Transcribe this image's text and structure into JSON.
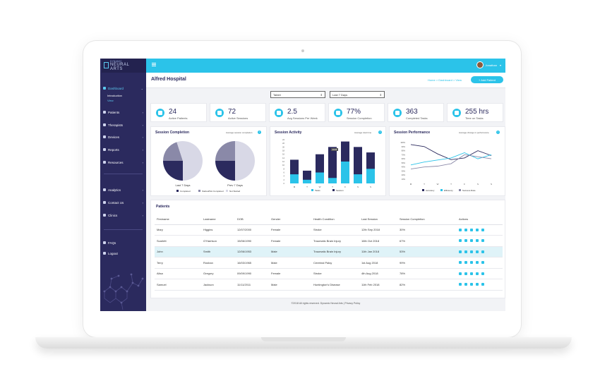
{
  "brand": {
    "line1": "DYNAMIC",
    "line2": "NEURAL",
    "line3": "ARTS"
  },
  "sidebar": {
    "items": [
      {
        "label": "Dashboard",
        "icon": "dashboard-icon",
        "active": true
      },
      {
        "label": "Patients",
        "icon": "user-icon"
      },
      {
        "label": "Therapists",
        "icon": "user-icon"
      },
      {
        "label": "Devices",
        "icon": "device-icon"
      },
      {
        "label": "Reports",
        "icon": "report-icon"
      },
      {
        "label": "Resources",
        "icon": "info-icon"
      },
      {
        "label": "Analytics",
        "icon": "chart-icon"
      },
      {
        "label": "Contact Us",
        "icon": "mail-icon"
      },
      {
        "label": "Clinics",
        "icon": "clinic-icon"
      },
      {
        "label": "FAQs",
        "icon": "help-icon"
      },
      {
        "label": "Logout",
        "icon": "power-icon"
      }
    ],
    "sub": [
      "Introduction",
      "View"
    ]
  },
  "topbar": {
    "user": "Jonathan"
  },
  "header": {
    "title": "Alfred Hospital",
    "crumbs": "Home  >  Dashboard  >  View",
    "add_label": "+ Add Patient"
  },
  "filters": {
    "device": "Tablet",
    "range": "Last 7 Days"
  },
  "stats": [
    {
      "value": "24",
      "label": "Active Patients"
    },
    {
      "value": "72",
      "label": "Active Sessions"
    },
    {
      "value": "2.5",
      "label": "Avg Sessions Per Week"
    },
    {
      "value": "77%",
      "label": "Session Completion"
    },
    {
      "value": "363",
      "label": "Completed Tasks"
    },
    {
      "value": "255 hrs",
      "label": "Time on Tasks"
    }
  ],
  "cards": {
    "completion": {
      "title": "Session Completion",
      "subtitle": "Average session completion",
      "pie1": "Last 7 Days",
      "pie2": "Prev 7 Days",
      "legend": [
        "Completed",
        "Started/Not Completed",
        "Not Started"
      ]
    },
    "activity": {
      "title": "Session Activity",
      "subtitle": "Average total time",
      "legend": [
        "Tasks",
        "Session"
      ],
      "tag": "00:05"
    },
    "performance": {
      "title": "Session Performance",
      "subtitle": "Average change in performance",
      "legend": [
        "Accuracy",
        "Efficiency",
        "Success Rate"
      ]
    }
  },
  "colors": {
    "accent": "#2bc3e9",
    "navy": "#2b2a5e",
    "grey": "#8a89a8",
    "light": "#d8d8e6"
  },
  "chart_data": [
    {
      "type": "pie",
      "title": "Last 7 Days",
      "categories": [
        "Completed",
        "Started/Not Completed",
        "Not Started"
      ],
      "values": [
        25,
        20,
        55
      ]
    },
    {
      "type": "pie",
      "title": "Prev 7 Days",
      "categories": [
        "Completed",
        "Started/Not Completed",
        "Not Started"
      ],
      "values": [
        25,
        25,
        50
      ]
    },
    {
      "type": "bar",
      "categories": [
        "M",
        "T",
        "W",
        "T",
        "F",
        "S",
        "S"
      ],
      "series": [
        {
          "name": "Tasks",
          "values": [
            5,
            2,
            6,
            3,
            12,
            5,
            8
          ]
        },
        {
          "name": "Session",
          "values": [
            13,
            7,
            16,
            20,
            23,
            20,
            17
          ]
        }
      ],
      "ylim": [
        0,
        24
      ]
    },
    {
      "type": "line",
      "categories": [
        "M",
        "T",
        "W",
        "T",
        "F",
        "S",
        "S"
      ],
      "series": [
        {
          "name": "Accuracy",
          "values": [
            95,
            90,
            72,
            58,
            62,
            80,
            68
          ]
        },
        {
          "name": "Efficiency",
          "values": [
            45,
            52,
            57,
            62,
            75,
            60,
            70
          ]
        },
        {
          "name": "Success Rate",
          "values": [
            35,
            40,
            42,
            48,
            70,
            65,
            60
          ]
        }
      ],
      "yticks": [
        "100%",
        "90%",
        "80%",
        "70%",
        "60%",
        "50%",
        "40%",
        "30%",
        "20%",
        "10%"
      ]
    }
  ],
  "patients": {
    "title": "Patients",
    "headers": [
      "Firstname",
      "Lastname",
      "DOB",
      "Gender",
      "Health Condition",
      "Last Session",
      "Session Completion",
      "Actions"
    ],
    "rows": [
      [
        "Mary",
        "Higgins",
        "12/07/2000",
        "Female",
        "Stroke",
        "12th Sep 2018",
        "30%"
      ],
      [
        "Scarlett",
        "O'Harrison",
        "15/06/1990",
        "Female",
        "Traumatic Brain Injury",
        "16th Oct 2018",
        "67%"
      ],
      [
        "John",
        "Smith",
        "12/06/1953",
        "Male",
        "Traumatic Brain Injury",
        "11th Jan 2018",
        "53%"
      ],
      [
        "Terry",
        "Roshan",
        "16/03/1965",
        "Male",
        "Cerebral Palsy",
        "1st Aug 2018",
        "99%"
      ],
      [
        "Alisa",
        "Gregory",
        "09/09/1990",
        "Female",
        "Stroke",
        "4th Aug 2018",
        "78%"
      ],
      [
        "Samuel",
        "Jackson",
        "11/11/2011",
        "Male",
        "Huntington's Disease",
        "11th Feb 2018",
        "82%"
      ]
    ]
  },
  "footer": "©2018 All rights reserved. Dynamic Neural Arts  |  Privacy Policy"
}
